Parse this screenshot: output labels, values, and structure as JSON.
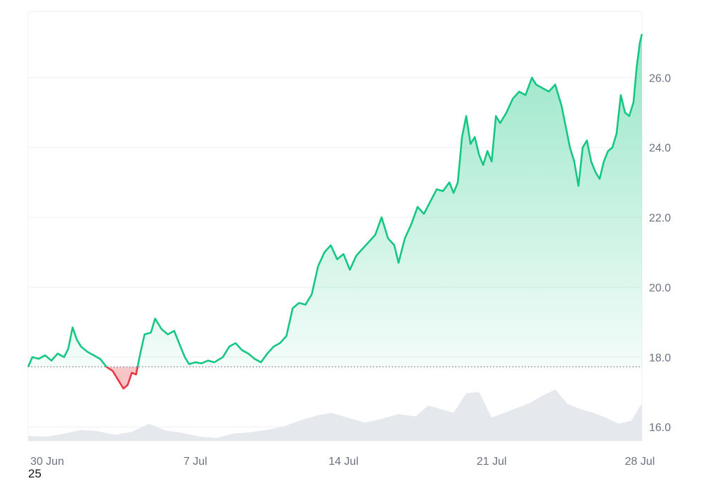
{
  "colors": {
    "up": "#16c784",
    "down": "#ea3943",
    "volume": "#e5e8ec",
    "grid": "#eef0f3",
    "baseline": "#6b7280",
    "tick": "#6b7280"
  },
  "footer_label": "25",
  "chart_data": {
    "type": "line",
    "title": "",
    "xlabel": "",
    "ylabel": "",
    "x_ticks": [
      "30 Jun",
      "7 Jul",
      "14 Jul",
      "21 Jul",
      "28 Jul"
    ],
    "x_tick_days": [
      3.0,
      10.0,
      17.0,
      24.0,
      31.0
    ],
    "y_ticks": [
      "16.0",
      "18.0",
      "20.0",
      "22.0",
      "24.0",
      "26.0"
    ],
    "y_tick_values": [
      16,
      18,
      20,
      22,
      24,
      26
    ],
    "ylim": [
      15.6,
      27.9
    ],
    "xlim": [
      2.1,
      31.1
    ],
    "baseline": 17.72,
    "grid": true,
    "series": [
      {
        "values": [
          {
            "x": 2.1,
            "y": 17.72
          },
          {
            "x": 2.3,
            "y": 18.0
          },
          {
            "x": 2.6,
            "y": 17.95
          },
          {
            "x": 2.9,
            "y": 18.05
          },
          {
            "x": 3.2,
            "y": 17.9
          },
          {
            "x": 3.5,
            "y": 18.1
          },
          {
            "x": 3.8,
            "y": 18.0
          },
          {
            "x": 4.0,
            "y": 18.25
          },
          {
            "x": 4.2,
            "y": 18.85
          },
          {
            "x": 4.4,
            "y": 18.5
          },
          {
            "x": 4.6,
            "y": 18.3
          },
          {
            "x": 4.9,
            "y": 18.15
          },
          {
            "x": 5.2,
            "y": 18.05
          },
          {
            "x": 5.5,
            "y": 17.95
          },
          {
            "x": 5.8,
            "y": 17.72
          },
          {
            "x": 6.1,
            "y": 17.6
          },
          {
            "x": 6.4,
            "y": 17.3
          },
          {
            "x": 6.6,
            "y": 17.1
          },
          {
            "x": 6.8,
            "y": 17.2
          },
          {
            "x": 7.0,
            "y": 17.55
          },
          {
            "x": 7.2,
            "y": 17.5
          },
          {
            "x": 7.4,
            "y": 18.1
          },
          {
            "x": 7.6,
            "y": 18.65
          },
          {
            "x": 7.9,
            "y": 18.7
          },
          {
            "x": 8.1,
            "y": 19.1
          },
          {
            "x": 8.4,
            "y": 18.8
          },
          {
            "x": 8.7,
            "y": 18.65
          },
          {
            "x": 9.0,
            "y": 18.75
          },
          {
            "x": 9.3,
            "y": 18.3
          },
          {
            "x": 9.5,
            "y": 18.0
          },
          {
            "x": 9.7,
            "y": 17.8
          },
          {
            "x": 10.0,
            "y": 17.85
          },
          {
            "x": 10.3,
            "y": 17.82
          },
          {
            "x": 10.6,
            "y": 17.9
          },
          {
            "x": 10.9,
            "y": 17.85
          },
          {
            "x": 11.3,
            "y": 18.0
          },
          {
            "x": 11.6,
            "y": 18.3
          },
          {
            "x": 11.9,
            "y": 18.4
          },
          {
            "x": 12.2,
            "y": 18.2
          },
          {
            "x": 12.5,
            "y": 18.1
          },
          {
            "x": 12.8,
            "y": 17.95
          },
          {
            "x": 13.1,
            "y": 17.85
          },
          {
            "x": 13.4,
            "y": 18.1
          },
          {
            "x": 13.7,
            "y": 18.3
          },
          {
            "x": 14.0,
            "y": 18.4
          },
          {
            "x": 14.3,
            "y": 18.6
          },
          {
            "x": 14.6,
            "y": 19.4
          },
          {
            "x": 14.9,
            "y": 19.55
          },
          {
            "x": 15.2,
            "y": 19.5
          },
          {
            "x": 15.5,
            "y": 19.8
          },
          {
            "x": 15.8,
            "y": 20.6
          },
          {
            "x": 16.1,
            "y": 21.0
          },
          {
            "x": 16.4,
            "y": 21.2
          },
          {
            "x": 16.7,
            "y": 20.8
          },
          {
            "x": 17.0,
            "y": 20.95
          },
          {
            "x": 17.3,
            "y": 20.5
          },
          {
            "x": 17.6,
            "y": 20.9
          },
          {
            "x": 17.9,
            "y": 21.1
          },
          {
            "x": 18.2,
            "y": 21.3
          },
          {
            "x": 18.5,
            "y": 21.5
          },
          {
            "x": 18.8,
            "y": 22.0
          },
          {
            "x": 19.1,
            "y": 21.4
          },
          {
            "x": 19.4,
            "y": 21.2
          },
          {
            "x": 19.6,
            "y": 20.7
          },
          {
            "x": 19.9,
            "y": 21.4
          },
          {
            "x": 20.2,
            "y": 21.8
          },
          {
            "x": 20.5,
            "y": 22.3
          },
          {
            "x": 20.8,
            "y": 22.1
          },
          {
            "x": 21.1,
            "y": 22.45
          },
          {
            "x": 21.4,
            "y": 22.8
          },
          {
            "x": 21.7,
            "y": 22.75
          },
          {
            "x": 22.0,
            "y": 23.0
          },
          {
            "x": 22.2,
            "y": 22.7
          },
          {
            "x": 22.4,
            "y": 23.0
          },
          {
            "x": 22.6,
            "y": 24.3
          },
          {
            "x": 22.8,
            "y": 24.9
          },
          {
            "x": 23.0,
            "y": 24.1
          },
          {
            "x": 23.2,
            "y": 24.3
          },
          {
            "x": 23.4,
            "y": 23.8
          },
          {
            "x": 23.6,
            "y": 23.5
          },
          {
            "x": 23.8,
            "y": 23.9
          },
          {
            "x": 24.0,
            "y": 23.6
          },
          {
            "x": 24.2,
            "y": 24.9
          },
          {
            "x": 24.4,
            "y": 24.7
          },
          {
            "x": 24.7,
            "y": 25.0
          },
          {
            "x": 25.0,
            "y": 25.4
          },
          {
            "x": 25.3,
            "y": 25.6
          },
          {
            "x": 25.6,
            "y": 25.5
          },
          {
            "x": 25.9,
            "y": 26.0
          },
          {
            "x": 26.1,
            "y": 25.8
          },
          {
            "x": 26.4,
            "y": 25.7
          },
          {
            "x": 26.7,
            "y": 25.6
          },
          {
            "x": 27.0,
            "y": 25.8
          },
          {
            "x": 27.3,
            "y": 25.2
          },
          {
            "x": 27.5,
            "y": 24.6
          },
          {
            "x": 27.7,
            "y": 24.0
          },
          {
            "x": 27.9,
            "y": 23.6
          },
          {
            "x": 28.1,
            "y": 22.9
          },
          {
            "x": 28.3,
            "y": 24.0
          },
          {
            "x": 28.5,
            "y": 24.2
          },
          {
            "x": 28.7,
            "y": 23.6
          },
          {
            "x": 28.9,
            "y": 23.3
          },
          {
            "x": 29.1,
            "y": 23.1
          },
          {
            "x": 29.3,
            "y": 23.6
          },
          {
            "x": 29.5,
            "y": 23.9
          },
          {
            "x": 29.7,
            "y": 24.0
          },
          {
            "x": 29.9,
            "y": 24.4
          },
          {
            "x": 30.1,
            "y": 25.5
          },
          {
            "x": 30.3,
            "y": 25.0
          },
          {
            "x": 30.5,
            "y": 24.9
          },
          {
            "x": 30.7,
            "y": 25.3
          },
          {
            "x": 30.85,
            "y": 26.3
          },
          {
            "x": 31.0,
            "y": 27.0
          },
          {
            "x": 31.1,
            "y": 27.25
          }
        ]
      }
    ],
    "volume": [
      {
        "x": 2.1,
        "y": 0.08
      },
      {
        "x": 3.0,
        "y": 0.07
      },
      {
        "x": 3.8,
        "y": 0.12
      },
      {
        "x": 4.6,
        "y": 0.18
      },
      {
        "x": 5.4,
        "y": 0.16
      },
      {
        "x": 6.2,
        "y": 0.1
      },
      {
        "x": 7.0,
        "y": 0.15
      },
      {
        "x": 7.8,
        "y": 0.28
      },
      {
        "x": 8.6,
        "y": 0.17
      },
      {
        "x": 9.4,
        "y": 0.13
      },
      {
        "x": 10.2,
        "y": 0.07
      },
      {
        "x": 11.0,
        "y": 0.05
      },
      {
        "x": 11.8,
        "y": 0.12
      },
      {
        "x": 12.6,
        "y": 0.14
      },
      {
        "x": 13.4,
        "y": 0.18
      },
      {
        "x": 14.2,
        "y": 0.24
      },
      {
        "x": 15.0,
        "y": 0.34
      },
      {
        "x": 15.8,
        "y": 0.42
      },
      {
        "x": 16.4,
        "y": 0.46
      },
      {
        "x": 17.2,
        "y": 0.38
      },
      {
        "x": 18.0,
        "y": 0.3
      },
      {
        "x": 18.8,
        "y": 0.36
      },
      {
        "x": 19.6,
        "y": 0.44
      },
      {
        "x": 20.4,
        "y": 0.4
      },
      {
        "x": 21.0,
        "y": 0.58
      },
      {
        "x": 21.6,
        "y": 0.52
      },
      {
        "x": 22.2,
        "y": 0.46
      },
      {
        "x": 22.8,
        "y": 0.78
      },
      {
        "x": 23.4,
        "y": 0.8
      },
      {
        "x": 24.0,
        "y": 0.38
      },
      {
        "x": 24.6,
        "y": 0.46
      },
      {
        "x": 25.2,
        "y": 0.54
      },
      {
        "x": 25.8,
        "y": 0.62
      },
      {
        "x": 26.4,
        "y": 0.74
      },
      {
        "x": 27.0,
        "y": 0.84
      },
      {
        "x": 27.6,
        "y": 0.6
      },
      {
        "x": 28.2,
        "y": 0.52
      },
      {
        "x": 28.8,
        "y": 0.46
      },
      {
        "x": 29.4,
        "y": 0.38
      },
      {
        "x": 30.0,
        "y": 0.28
      },
      {
        "x": 30.6,
        "y": 0.33
      },
      {
        "x": 31.1,
        "y": 0.62
      }
    ]
  }
}
